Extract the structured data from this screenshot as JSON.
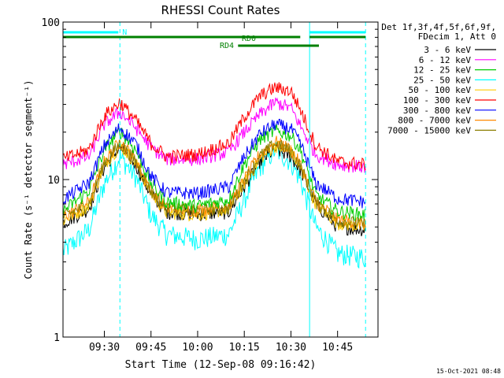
{
  "chart_data": {
    "type": "line",
    "title": "RHESSI Count Rates",
    "xlabel": "Start Time (12-Sep-08 09:16:42)",
    "ylabel": "Count Rate (s⁻¹ detector segment⁻¹)",
    "yscale": "log",
    "ylim": [
      1,
      100
    ],
    "xlim": [
      "09:16:42",
      "10:58:00"
    ],
    "x_ticks": [
      "09:30",
      "09:45",
      "10:00",
      "10:15",
      "10:30",
      "10:45"
    ],
    "y_ticks": [
      "1",
      "10",
      "100"
    ],
    "legend_position": "right",
    "legend_header": [
      "Det 1f,3f,4f,5f,6f,9f,",
      "FDecim 1, Att 0"
    ],
    "timestamp": "15-Oct-2021 08:48",
    "profile_times": [
      "09:16:42",
      "09:25",
      "09:30",
      "09:35",
      "09:40",
      "09:45",
      "09:50",
      "10:00",
      "10:10",
      "10:15",
      "10:20",
      "10:25",
      "10:30",
      "10:33",
      "10:38",
      "10:45",
      "10:54"
    ],
    "series": [
      {
        "name": "3 - 6 keV",
        "color": "#000000",
        "values": [
          5.3,
          6.5,
          12.0,
          16.0,
          12.5,
          8.0,
          6.2,
          6.0,
          6.2,
          9.0,
          13.0,
          15.5,
          14.0,
          11.5,
          7.0,
          5.0,
          4.8
        ]
      },
      {
        "name": "6 - 12 keV",
        "color": "#ff00ff",
        "values": [
          12.5,
          14.0,
          22.5,
          27.0,
          21.5,
          16.0,
          13.5,
          13.5,
          15.0,
          20.0,
          26.0,
          31.0,
          28.5,
          22.0,
          14.5,
          12.5,
          12.0
        ]
      },
      {
        "name": "12 - 25 keV",
        "color": "#00cc00",
        "values": [
          6.3,
          8.5,
          15.5,
          20.5,
          15.5,
          9.5,
          7.2,
          6.8,
          7.5,
          12.5,
          18.0,
          20.5,
          19.0,
          15.5,
          8.0,
          6.3,
          6.0
        ]
      },
      {
        "name": "25 - 50 keV",
        "color": "#00ffff",
        "values": [
          3.5,
          4.8,
          9.5,
          14.0,
          10.5,
          6.0,
          4.5,
          4.2,
          4.5,
          7.5,
          12.0,
          15.5,
          13.0,
          10.0,
          5.0,
          3.4,
          3.2
        ]
      },
      {
        "name": "50 - 100 keV",
        "color": "#ffcc00",
        "values": [
          5.5,
          6.8,
          12.5,
          16.5,
          13.0,
          8.2,
          6.2,
          6.0,
          6.5,
          9.5,
          13.5,
          16.5,
          15.0,
          12.0,
          7.0,
          5.3,
          5.0
        ]
      },
      {
        "name": "100 - 300 keV",
        "color": "#ff0000",
        "values": [
          13.5,
          15.5,
          25.5,
          31.0,
          24.0,
          17.0,
          14.0,
          14.5,
          17.0,
          25.0,
          34.0,
          38.5,
          36.5,
          28.0,
          16.5,
          13.0,
          12.5
        ]
      },
      {
        "name": "300 - 800 keV",
        "color": "#0000ff",
        "values": [
          7.5,
          9.5,
          16.5,
          21.5,
          17.0,
          10.5,
          8.3,
          8.2,
          9.0,
          14.0,
          19.5,
          22.5,
          21.0,
          17.0,
          9.5,
          7.6,
          7.2
        ]
      },
      {
        "name": "800 - 7000 keV",
        "color": "#ff8800",
        "values": [
          5.8,
          7.2,
          13.0,
          17.5,
          13.5,
          8.6,
          6.6,
          6.4,
          6.8,
          10.0,
          14.5,
          17.5,
          15.5,
          12.5,
          7.3,
          5.6,
          5.3
        ]
      },
      {
        "name": "7000 - 15000 keV",
        "color": "#8b7d00",
        "values": [
          5.8,
          7.0,
          12.8,
          17.0,
          13.2,
          8.4,
          6.5,
          6.3,
          6.6,
          9.8,
          14.0,
          17.0,
          15.2,
          12.2,
          7.2,
          5.5,
          5.2
        ]
      }
    ],
    "attenuator_bars": [
      {
        "label": "N",
        "color": "#00ffff",
        "segments": [
          [
            "09:16:42",
            "09:34:30"
          ],
          [
            "10:36:00",
            "10:54:00"
          ]
        ]
      },
      {
        "label": "RD0",
        "color": "#008000",
        "segments": [
          [
            "09:16:42",
            "10:33:00"
          ],
          [
            "10:36:00",
            "10:54:00"
          ]
        ]
      },
      {
        "label": "RD4",
        "color": "#008000",
        "segments": [
          [
            "10:13:00",
            "10:39:00"
          ]
        ]
      }
    ],
    "vertical_markers": [
      {
        "time": "09:35:00",
        "color": "#00ffff",
        "style": "dashed"
      },
      {
        "time": "10:36:00",
        "color": "#00ffff",
        "style": "solid"
      },
      {
        "time": "10:54:00",
        "color": "#00ffff",
        "style": "dashed"
      },
      {
        "time": "09:16:42",
        "color": "#00ffff",
        "style": "solid"
      }
    ],
    "grid": false,
    "noise": 0.1
  }
}
